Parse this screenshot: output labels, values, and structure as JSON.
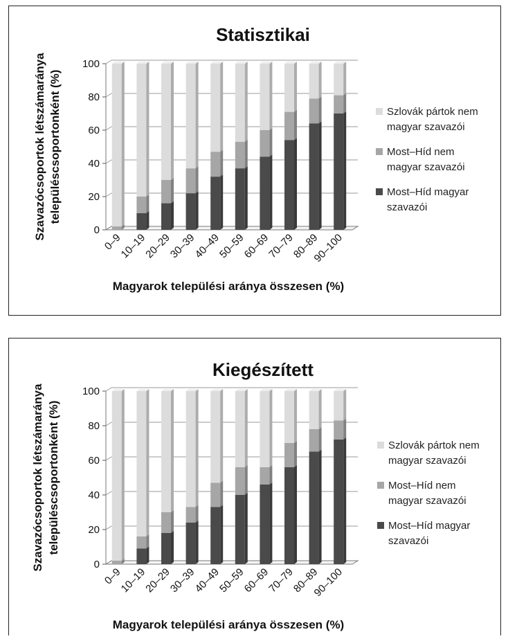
{
  "chart_data": [
    {
      "type": "bar",
      "stacked": true,
      "title": "Statisztikai",
      "xlabel": "Magyarok települési aránya összesen (%)",
      "ylabel_line1": "Szavazócsoportok létszámaránya",
      "ylabel_line2": "településcsoportonként (%)",
      "ylim": [
        0,
        100
      ],
      "yticks": [
        "0",
        "20",
        "40",
        "60",
        "80",
        "100"
      ],
      "categories": [
        "0–9",
        "10–19",
        "20–29",
        "30–39",
        "40–49",
        "50–59",
        "60–69",
        "70–79",
        "80–89",
        "90–100"
      ],
      "series": [
        {
          "name": "Most–Híd magyar szavazói",
          "color": "#4a4a4a",
          "values": [
            0,
            10,
            16,
            22,
            32,
            37,
            44,
            54,
            64,
            70
          ]
        },
        {
          "name": "Most–Híd nem magyar szavazói",
          "color": "#a6a6a6",
          "values": [
            2,
            10,
            14,
            15,
            15,
            16,
            16,
            17,
            15,
            11
          ]
        },
        {
          "name": "Szlovák pártok nem magyar szavazói",
          "color": "#dcdcdc",
          "values": [
            98,
            80,
            70,
            63,
            53,
            47,
            40,
            29,
            21,
            19
          ]
        }
      ],
      "legend": {
        "position": "right",
        "items": [
          [
            "Szlovák pártok nem",
            "magyar szavazói"
          ],
          [
            "Most–Híd nem",
            "magyar szavazói"
          ],
          [
            "Most–Híd magyar",
            "szavazói"
          ]
        ]
      }
    },
    {
      "type": "bar",
      "stacked": true,
      "title": "Kiegészített",
      "xlabel": "Magyarok települési aránya összesen (%)",
      "ylabel_line1": "Szavazócsoportok létszámaránya",
      "ylabel_line2": "településcsoportonként (%)",
      "ylim": [
        0,
        100
      ],
      "yticks": [
        "0",
        "20",
        "40",
        "60",
        "80",
        "100"
      ],
      "categories": [
        "0–9",
        "10–19",
        "20–29",
        "30–39",
        "40–49",
        "50–59",
        "60–69",
        "70–79",
        "80–89",
        "90–100"
      ],
      "series": [
        {
          "name": "Most–Híd magyar szavazói",
          "color": "#4a4a4a",
          "values": [
            0,
            9,
            18,
            24,
            33,
            40,
            46,
            56,
            65,
            72
          ]
        },
        {
          "name": "Most–Híd nem magyar szavazói",
          "color": "#a6a6a6",
          "values": [
            2,
            7,
            12,
            9,
            14,
            16,
            10,
            14,
            13,
            11
          ]
        },
        {
          "name": "Szlovák pártok nem magyar szavazói",
          "color": "#dcdcdc",
          "values": [
            98,
            84,
            70,
            67,
            53,
            44,
            44,
            30,
            22,
            17
          ]
        }
      ],
      "legend": {
        "position": "right",
        "items": [
          [
            "Szlovák pártok nem",
            "magyar szavazói"
          ],
          [
            "Most–Híd nem",
            "magyar szavazói"
          ],
          [
            "Most–Híd magyar",
            "szavazói"
          ]
        ]
      }
    }
  ]
}
